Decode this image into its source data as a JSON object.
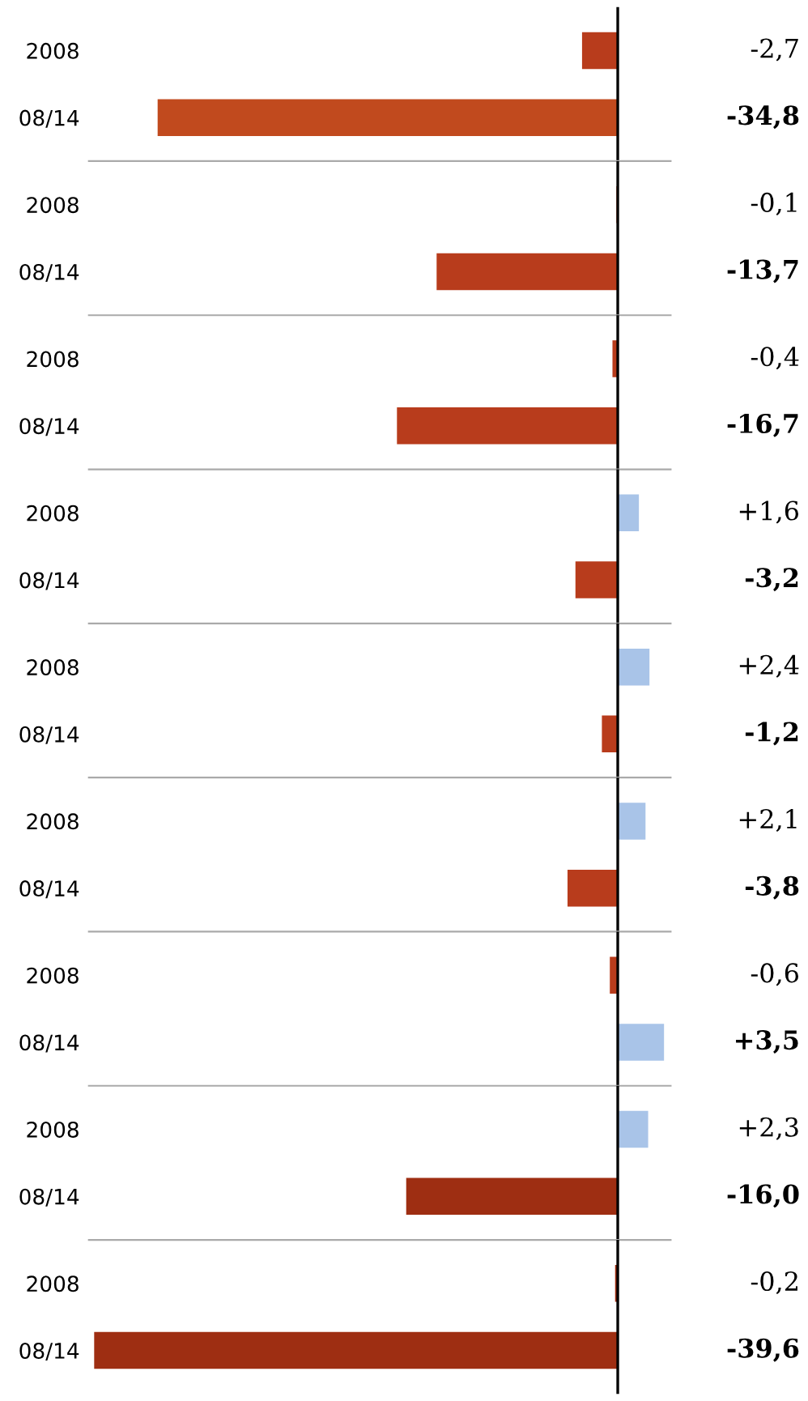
{
  "chart_data": [
    {
      "type": "bar",
      "orientation": "horizontal",
      "categories": [
        "2008",
        "08/14"
      ],
      "values": [
        -2.7,
        -34.8
      ],
      "colors": [
        "#b83c1c",
        "#c14a1e"
      ],
      "value_labels": [
        "-2,7",
        "-34,8"
      ],
      "xlim": [
        -40,
        4
      ],
      "tick_labels": "y",
      "ref_lines": [
        {
          "axis": "x",
          "value": 0,
          "color": "#000000"
        }
      ]
    },
    {
      "type": "bar",
      "orientation": "horizontal",
      "categories": [
        "2008",
        "08/14"
      ],
      "values": [
        -0.1,
        -13.7
      ],
      "colors": [
        "#b83c1c",
        "#b83c1c"
      ],
      "value_labels": [
        "-0,1",
        "-13,7"
      ],
      "xlim": [
        -40,
        4
      ],
      "tick_labels": "y",
      "ref_lines": [
        {
          "axis": "x",
          "value": 0,
          "color": "#000000"
        }
      ]
    },
    {
      "type": "bar",
      "orientation": "horizontal",
      "categories": [
        "2008",
        "08/14"
      ],
      "values": [
        -0.4,
        -16.7
      ],
      "colors": [
        "#b83c1c",
        "#b83c1c"
      ],
      "value_labels": [
        "-0,4",
        "-16,7"
      ],
      "xlim": [
        -40,
        4
      ],
      "tick_labels": "y",
      "ref_lines": [
        {
          "axis": "x",
          "value": 0,
          "color": "#000000"
        }
      ]
    },
    {
      "type": "bar",
      "orientation": "horizontal",
      "categories": [
        "2008",
        "08/14"
      ],
      "values": [
        1.6,
        -3.2
      ],
      "colors": [
        "#a9c4e8",
        "#b83c1c"
      ],
      "value_labels": [
        "+1,6",
        "-3,2"
      ],
      "xlim": [
        -40,
        4
      ],
      "tick_labels": "y",
      "ref_lines": [
        {
          "axis": "x",
          "value": 0,
          "color": "#000000"
        }
      ]
    },
    {
      "type": "bar",
      "orientation": "horizontal",
      "categories": [
        "2008",
        "08/14"
      ],
      "values": [
        2.4,
        -1.2
      ],
      "colors": [
        "#a9c4e8",
        "#b83c1c"
      ],
      "value_labels": [
        "+2,4",
        "-1,2"
      ],
      "xlim": [
        -40,
        4
      ],
      "tick_labels": "y",
      "ref_lines": [
        {
          "axis": "x",
          "value": 0,
          "color": "#000000"
        }
      ]
    },
    {
      "type": "bar",
      "orientation": "horizontal",
      "categories": [
        "2008",
        "08/14"
      ],
      "values": [
        2.1,
        -3.8
      ],
      "colors": [
        "#a9c4e8",
        "#b83c1c"
      ],
      "value_labels": [
        "+2,1",
        "-3,8"
      ],
      "xlim": [
        -40,
        4
      ],
      "tick_labels": "y",
      "ref_lines": [
        {
          "axis": "x",
          "value": 0,
          "color": "#000000"
        }
      ]
    },
    {
      "type": "bar",
      "orientation": "horizontal",
      "categories": [
        "2008",
        "08/14"
      ],
      "values": [
        -0.6,
        3.5
      ],
      "colors": [
        "#b83c1c",
        "#a9c4e8"
      ],
      "value_labels": [
        "-0,6",
        "+3,5"
      ],
      "xlim": [
        -40,
        4
      ],
      "tick_labels": "y",
      "ref_lines": [
        {
          "axis": "x",
          "value": 0,
          "color": "#000000"
        }
      ]
    },
    {
      "type": "bar",
      "orientation": "horizontal",
      "categories": [
        "2008",
        "08/14"
      ],
      "values": [
        2.3,
        -16.0
      ],
      "colors": [
        "#a9c4e8",
        "#9e2e12"
      ],
      "value_labels": [
        "+2,3",
        "-16,0"
      ],
      "xlim": [
        -40,
        4
      ],
      "tick_labels": "y",
      "ref_lines": [
        {
          "axis": "x",
          "value": 0,
          "color": "#000000"
        }
      ]
    },
    {
      "type": "bar",
      "orientation": "horizontal",
      "categories": [
        "2008",
        "08/14"
      ],
      "values": [
        -0.2,
        -39.6
      ],
      "colors": [
        "#9e2e12",
        "#9e2e12"
      ],
      "value_labels": [
        "-0,2",
        "-39,6"
      ],
      "xlim": [
        -40,
        4
      ],
      "tick_labels": "y",
      "ref_lines": [
        {
          "axis": "x",
          "value": 0,
          "color": "#000000"
        }
      ]
    }
  ]
}
